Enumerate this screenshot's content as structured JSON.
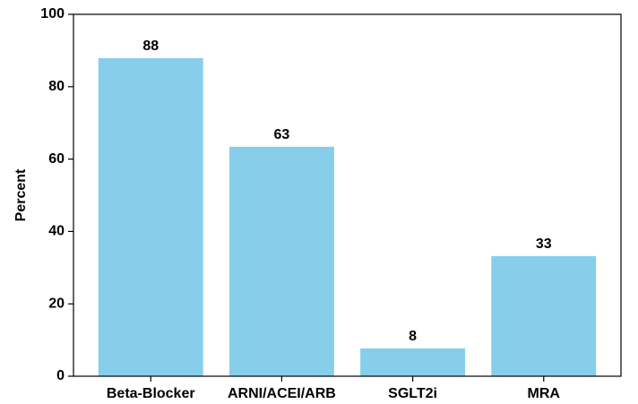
{
  "chart_data": {
    "type": "bar",
    "y_label": "Percent",
    "categories": [
      "Beta-Blocker",
      "ARNI/ACEI/ARB",
      "SGLT2i",
      "MRA"
    ],
    "values": [
      87.9,
      63.4,
      7.7,
      33.2
    ],
    "value_labels": [
      "88",
      "63",
      "8",
      "33"
    ],
    "color": "#87ceeb",
    "ylim": [
      0,
      100
    ],
    "yticks": [
      0,
      20,
      40,
      60,
      80,
      100
    ],
    "grid": false
  }
}
